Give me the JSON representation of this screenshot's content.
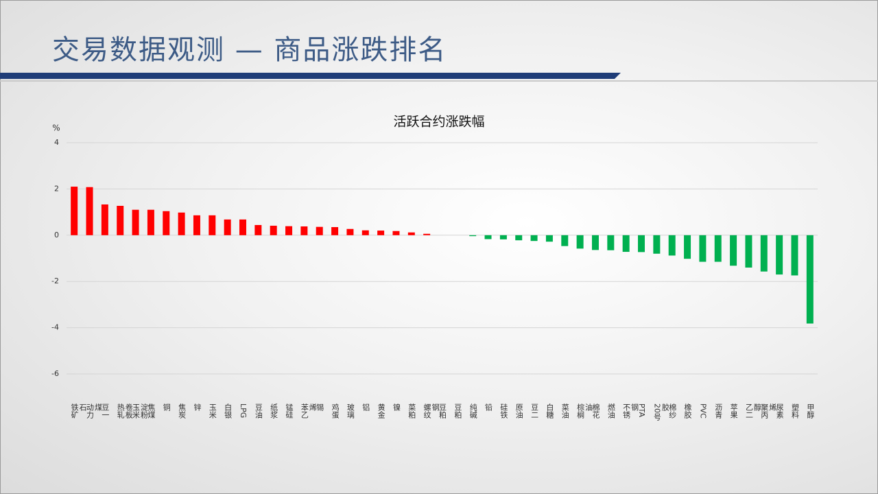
{
  "header": {
    "title": "交易数据观测 — 商品涨跌排名"
  },
  "chart_data": {
    "type": "bar",
    "title": "活跃合约涨跌幅",
    "y_label": "%",
    "categories": [
      "铁矿石",
      "动力煤",
      "豆一",
      "热轧卷板",
      "玉米淀粉",
      "焦煤",
      "铜",
      "焦炭",
      "锌",
      "玉米",
      "白银",
      "LPG",
      "豆油",
      "纸浆",
      "锰硅",
      "苯乙烯",
      "锡",
      "鸡蛋",
      "玻璃",
      "铝",
      "黄金",
      "镍",
      "菜粕",
      "螺纹钢",
      "豆粕",
      "豆粕",
      "纯碱",
      "铅",
      "硅铁",
      "原油",
      "豆二",
      "白糖",
      "菜油",
      "棕榈油",
      "棉花",
      "燃油",
      "不锈钢",
      "PTA",
      "20号胶",
      "棉纱",
      "橡胶",
      "PVC",
      "沥青",
      "苹果",
      "乙二醇",
      "聚丙烯",
      "尿素",
      "塑料",
      "甲醇"
    ],
    "values": [
      2.1,
      2.08,
      1.33,
      1.27,
      1.1,
      1.1,
      1.04,
      0.98,
      0.86,
      0.86,
      0.68,
      0.68,
      0.44,
      0.41,
      0.39,
      0.38,
      0.36,
      0.35,
      0.27,
      0.21,
      0.2,
      0.18,
      0.12,
      0.06,
      0,
      0,
      -0.04,
      -0.17,
      -0.18,
      -0.22,
      -0.25,
      -0.28,
      -0.47,
      -0.58,
      -0.64,
      -0.65,
      -0.72,
      -0.73,
      -0.8,
      -0.88,
      -1.02,
      -1.15,
      -1.15,
      -1.32,
      -1.4,
      -1.57,
      -1.7,
      -1.74,
      -3.82
    ],
    "positive_color": "#ff0000",
    "negative_color": "#00b050",
    "ylim": [
      -6,
      4
    ],
    "yticks": [
      -6,
      -4,
      -2,
      0,
      2,
      4
    ],
    "grid": true
  }
}
